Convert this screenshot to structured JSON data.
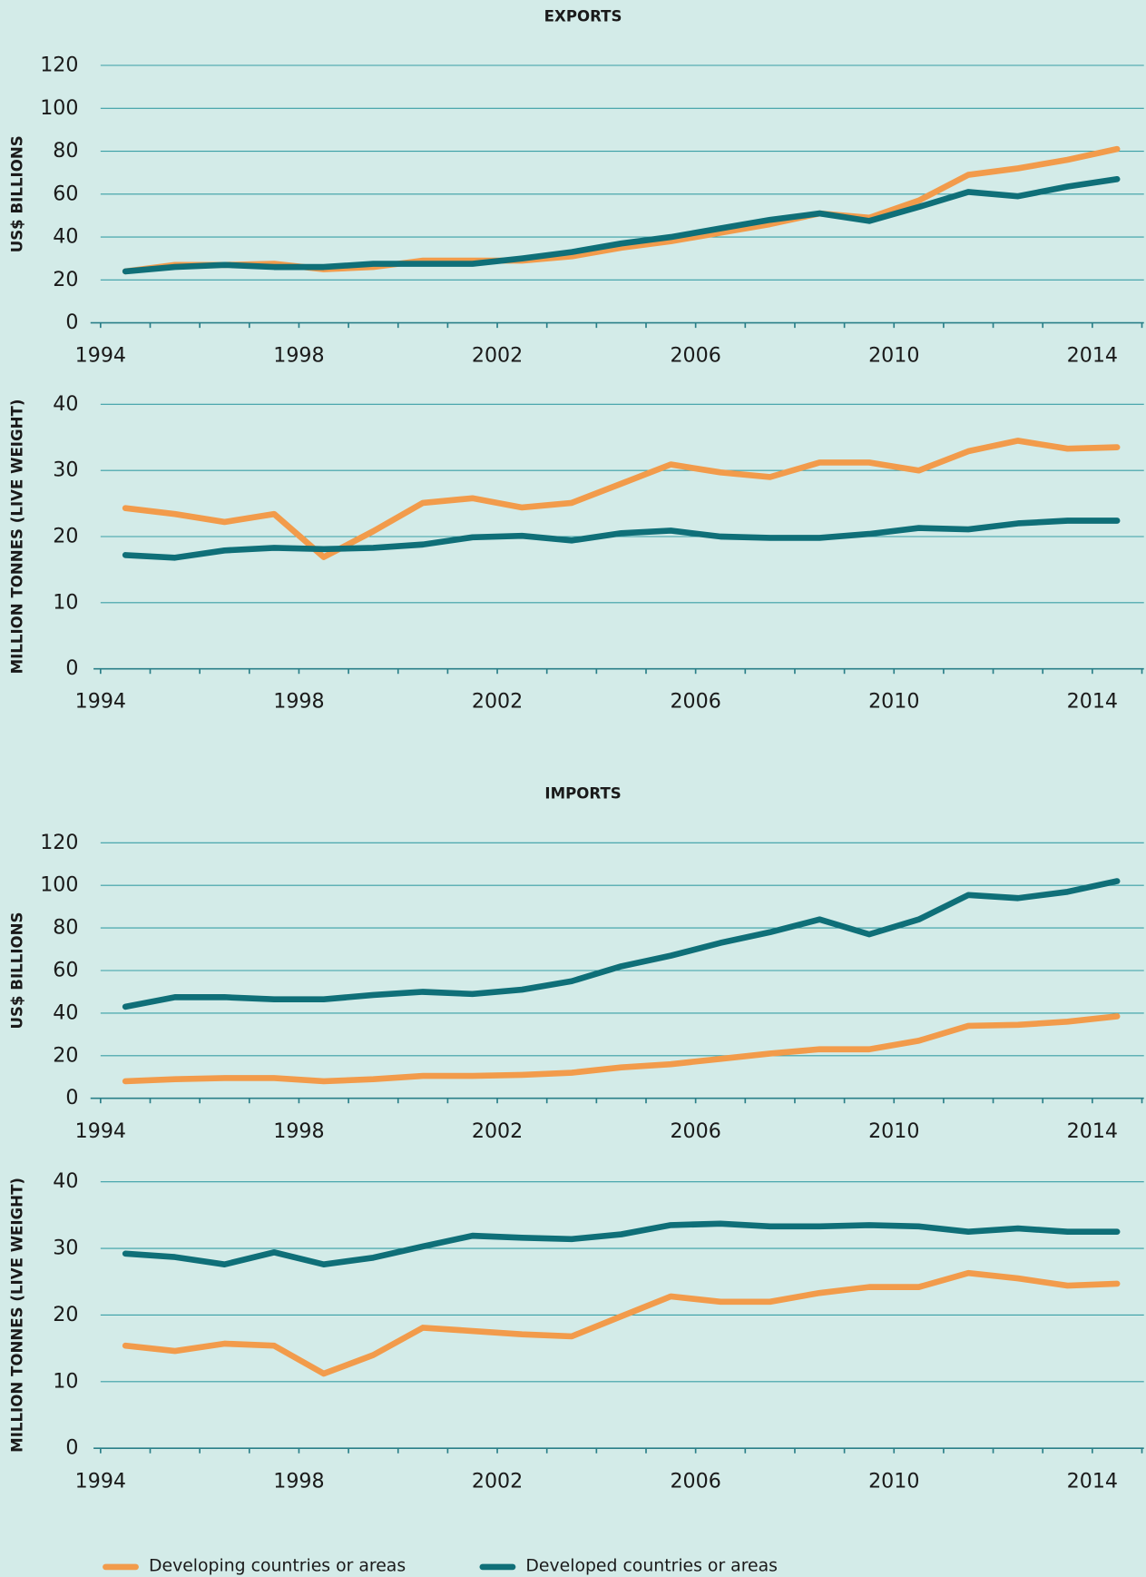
{
  "chart_data": [
    {
      "type": "line",
      "title": "EXPORTS",
      "ylabel": "US$ BILLIONS",
      "categories": [
        "1994",
        null,
        null,
        null,
        "1998",
        null,
        null,
        null,
        "2002",
        null,
        null,
        null,
        "2006",
        null,
        null,
        null,
        "2010",
        null,
        null,
        null,
        "2014"
      ],
      "ylim": [
        0,
        120
      ],
      "yticks": [
        0,
        20,
        40,
        60,
        80,
        100,
        120
      ],
      "grid": true,
      "series": [
        {
          "name": "Developing countries or areas",
          "color": "#f29b4b",
          "values": [
            24,
            27,
            27,
            27.5,
            25,
            26,
            29,
            29,
            29,
            31,
            35,
            38,
            42,
            46,
            51,
            49,
            57,
            69,
            72,
            76,
            81
          ]
        },
        {
          "name": "Developed countries or areas",
          "color": "#0f6f78",
          "values": [
            24,
            26,
            27,
            26,
            26,
            27.5,
            27.5,
            27.5,
            30,
            33,
            37,
            40,
            44,
            48,
            51,
            47.5,
            54,
            61,
            59,
            63.5,
            67
          ]
        }
      ]
    },
    {
      "type": "line",
      "ylabel": "MILLION TONNES (LIVE WEIGHT)",
      "categories": [
        "1994",
        null,
        null,
        null,
        "1998",
        null,
        null,
        null,
        "2002",
        null,
        null,
        null,
        "2006",
        null,
        null,
        null,
        "2010",
        null,
        null,
        null,
        "2014"
      ],
      "ylim": [
        0,
        40
      ],
      "yticks": [
        0,
        10,
        20,
        30,
        40
      ],
      "grid": true,
      "series": [
        {
          "color": "#f29b4b",
          "values": [
            24.3,
            23.4,
            22.2,
            23.4,
            16.9,
            20.8,
            25.1,
            25.8,
            24.4,
            25.1,
            28,
            30.9,
            29.7,
            29,
            31.2,
            31.2,
            30,
            32.9,
            34.5,
            33.3,
            33.5
          ]
        },
        {
          "color": "#0f6f78",
          "values": [
            17.2,
            16.8,
            17.9,
            18.3,
            18.1,
            18.3,
            18.8,
            19.9,
            20.1,
            19.4,
            20.5,
            20.9,
            20,
            19.8,
            19.8,
            20.4,
            21.3,
            21.1,
            22,
            22.4,
            22.4
          ]
        }
      ]
    },
    {
      "type": "line",
      "title": "IMPORTS",
      "ylabel": "US$ BILLIONS",
      "categories": [
        "1994",
        null,
        null,
        null,
        "1998",
        null,
        null,
        null,
        "2002",
        null,
        null,
        null,
        "2006",
        null,
        null,
        null,
        "2010",
        null,
        null,
        null,
        "2014"
      ],
      "ylim": [
        0,
        120
      ],
      "yticks": [
        0,
        20,
        40,
        60,
        80,
        100,
        120
      ],
      "grid": true,
      "series": [
        {
          "color": "#f29b4b",
          "values": [
            8,
            9,
            9.5,
            9.5,
            8,
            9,
            10.5,
            10.5,
            11,
            12,
            14.5,
            16,
            18.5,
            21,
            23,
            23,
            27,
            34,
            34.5,
            36,
            38.5
          ]
        },
        {
          "color": "#0f6f78",
          "values": [
            43,
            47.5,
            47.5,
            46.5,
            46.5,
            48.5,
            50,
            49,
            51,
            55,
            62,
            67,
            73,
            78,
            84,
            77,
            84,
            95.5,
            94,
            97,
            102
          ]
        }
      ]
    },
    {
      "type": "line",
      "ylabel": "MILLION TONNES (LIVE WEIGHT)",
      "categories": [
        "1994",
        null,
        null,
        null,
        "1998",
        null,
        null,
        null,
        "2002",
        null,
        null,
        null,
        "2006",
        null,
        null,
        null,
        "2010",
        null,
        null,
        null,
        "2014"
      ],
      "ylim": [
        0,
        40
      ],
      "yticks": [
        0,
        10,
        20,
        30,
        40
      ],
      "grid": true,
      "series": [
        {
          "color": "#f29b4b",
          "values": [
            15.4,
            14.6,
            15.7,
            15.4,
            11.2,
            14,
            18.1,
            17.6,
            17.1,
            16.8,
            19.8,
            22.8,
            22,
            22,
            23.3,
            24.2,
            24.2,
            26.3,
            25.5,
            24.4,
            24.7
          ]
        },
        {
          "color": "#0f6f78",
          "values": [
            29.2,
            28.7,
            27.6,
            29.4,
            27.6,
            28.6,
            30.3,
            31.9,
            31.6,
            31.4,
            32.1,
            33.5,
            33.7,
            33.3,
            33.3,
            33.5,
            33.3,
            32.5,
            33,
            32.5,
            32.5
          ]
        }
      ]
    }
  ]
}
